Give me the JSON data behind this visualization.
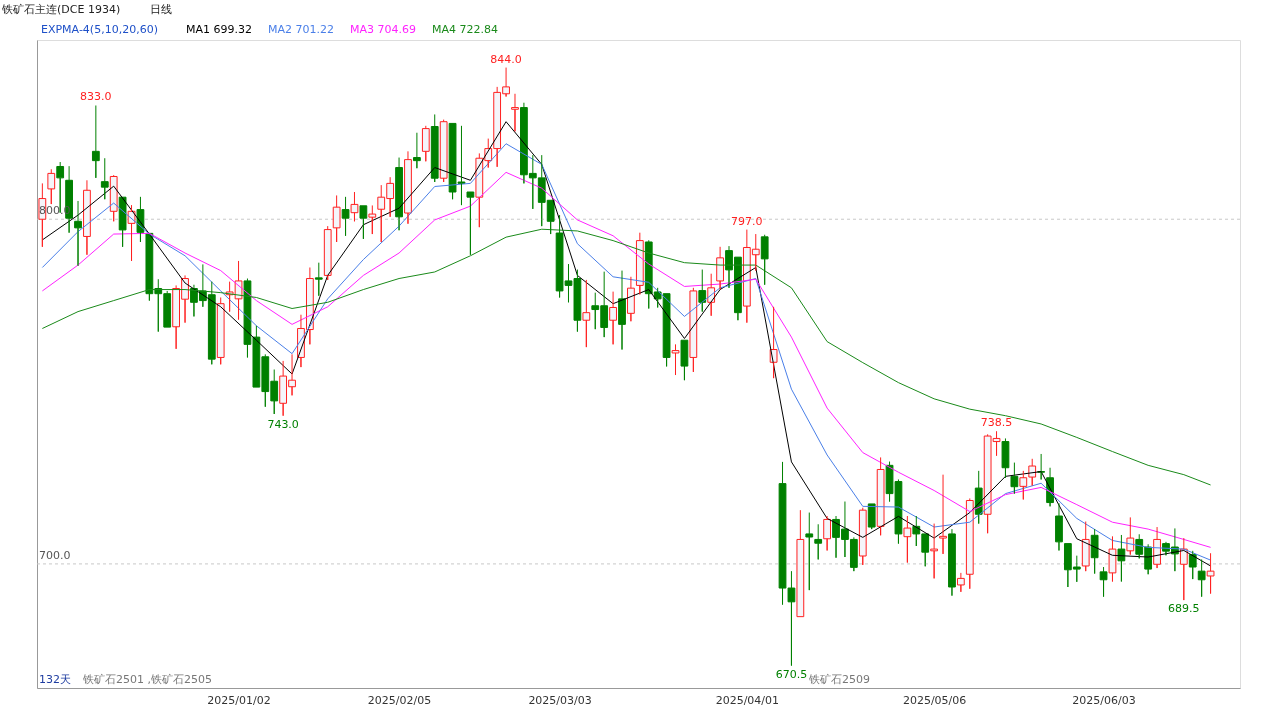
{
  "chart_data": {
    "type": "candlestick",
    "title": "铁矿石主连(DCE 1934)",
    "legend_title": "EXPMA-4(5,10,20,60)",
    "legend": "top left",
    "grid": "y",
    "categories": [
      null,
      null,
      null,
      null,
      null,
      null,
      null,
      null,
      null,
      null,
      null,
      null,
      null,
      null,
      null,
      null,
      null,
      null,
      null,
      null,
      null,
      null,
      "2025/01/02",
      null,
      null,
      null,
      null,
      null,
      null,
      null,
      null,
      null,
      null,
      null,
      null,
      null,
      null,
      null,
      null,
      null,
      "2025/02/05",
      null,
      null,
      null,
      null,
      null,
      null,
      null,
      null,
      null,
      null,
      null,
      null,
      null,
      null,
      null,
      null,
      null,
      "2025/03/03",
      null,
      null,
      null,
      null,
      null,
      null,
      null,
      null,
      null,
      null,
      null,
      null,
      null,
      null,
      null,
      null,
      null,
      null,
      null,
      null,
      "2025/04/01",
      null,
      null,
      null,
      null,
      null,
      null,
      null,
      null,
      null,
      null,
      null,
      null,
      null,
      null,
      null,
      null,
      null,
      null,
      null,
      null,
      "2025/05/06",
      null,
      null,
      null,
      null,
      null,
      null,
      null,
      null,
      null,
      null,
      null,
      null,
      null,
      null,
      null,
      null,
      null,
      null,
      "2025/06/03",
      null,
      null,
      null,
      null,
      null,
      null,
      null,
      null,
      null,
      null,
      null,
      null
    ],
    "ohlc": [
      [
        800.0,
        810.4,
        792.0,
        806.0
      ],
      [
        808.8,
        814.5,
        804.4,
        813.3
      ],
      [
        815.3,
        816.6,
        801.9,
        812.0
      ],
      [
        811.3,
        815.4,
        796.1,
        800.3
      ],
      [
        799.4,
        805.3,
        786.5,
        797.5
      ],
      [
        795.0,
        811.3,
        789.7,
        808.4
      ],
      [
        819.7,
        833.0,
        812.0,
        817.0
      ],
      [
        810.9,
        817.7,
        805.8,
        809.3
      ],
      [
        802.3,
        812.8,
        799.4,
        812.4
      ],
      [
        806.4,
        806.4,
        792.0,
        796.9
      ],
      [
        798.8,
        804.1,
        787.9,
        802.3
      ],
      [
        802.8,
        806.5,
        793.4,
        796.2
      ],
      [
        795.9,
        795.9,
        776.4,
        778.4
      ],
      [
        779.9,
        782.6,
        767.4,
        778.4
      ],
      [
        778.4,
        779.2,
        768.7,
        768.7
      ],
      [
        768.8,
        780.8,
        762.4,
        779.9
      ],
      [
        776.8,
        783.7,
        770.0,
        782.8
      ],
      [
        779.9,
        781.0,
        771.8,
        775.9
      ],
      [
        779.2,
        786.9,
        774.6,
        776.4
      ],
      [
        778.1,
        781.9,
        757.9,
        759.4
      ],
      [
        759.9,
        777.3,
        757.9,
        775.5
      ],
      [
        778.1,
        781.9,
        773.2,
        778.9
      ],
      [
        776.9,
        787.9,
        770.9,
        782.1
      ],
      [
        782.1,
        782.8,
        759.9,
        763.7
      ],
      [
        765.8,
        769.1,
        751.3,
        751.3
      ],
      [
        760.1,
        760.8,
        745.6,
        750.0
      ],
      [
        753.0,
        756.4,
        743.5,
        747.3
      ],
      [
        746.6,
        758.9,
        743.0,
        754.5
      ],
      [
        751.4,
        760.8,
        748.9,
        753.3
      ],
      [
        759.9,
        772.3,
        757.1,
        768.3
      ],
      [
        768.0,
        786.0,
        763.7,
        782.8
      ],
      [
        783.0,
        787.4,
        777.8,
        782.6
      ],
      [
        783.7,
        798.0,
        782.4,
        797.0
      ],
      [
        797.5,
        806.9,
        793.4,
        803.5
      ],
      [
        802.8,
        806.5,
        795.2,
        800.3
      ],
      [
        801.9,
        807.9,
        799.4,
        804.3
      ],
      [
        803.9,
        803.9,
        794.3,
        800.3
      ],
      [
        800.6,
        804.0,
        795.7,
        801.5
      ],
      [
        802.9,
        809.9,
        793.4,
        806.4
      ],
      [
        806.0,
        812.2,
        800.7,
        810.4
      ],
      [
        815.0,
        817.9,
        796.8,
        800.7
      ],
      [
        801.8,
        819.7,
        798.7,
        817.3
      ],
      [
        817.9,
        825.1,
        814.8,
        817.0
      ],
      [
        819.7,
        827.1,
        816.8,
        826.3
      ],
      [
        826.9,
        830.4,
        810.8,
        811.9
      ],
      [
        811.9,
        828.9,
        810.8,
        828.3
      ],
      [
        827.8,
        827.8,
        805.8,
        807.9
      ],
      [
        810.8,
        827.1,
        804.1,
        810.4
      ],
      [
        807.9,
        807.9,
        789.7,
        806.4
      ],
      [
        806.4,
        819.1,
        797.7,
        817.7
      ],
      [
        817.0,
        823.4,
        815.0,
        820.5
      ],
      [
        820.5,
        838.4,
        815.2,
        836.8
      ],
      [
        836.4,
        844.0,
        835.6,
        838.4
      ],
      [
        831.9,
        836.4,
        825.5,
        832.4
      ],
      [
        832.4,
        833.8,
        810.4,
        812.9
      ],
      [
        813.3,
        818.6,
        803.0,
        812.0
      ],
      [
        812.0,
        818.6,
        798.0,
        804.9
      ],
      [
        805.5,
        805.5,
        795.7,
        799.4
      ],
      [
        796.0,
        801.2,
        777.3,
        779.2
      ],
      [
        782.1,
        787.0,
        775.9,
        780.8
      ],
      [
        782.8,
        785.4,
        767.4,
        770.7
      ],
      [
        770.7,
        782.4,
        762.9,
        772.9
      ],
      [
        774.9,
        778.7,
        768.1,
        773.8
      ],
      [
        774.9,
        784.8,
        765.8,
        768.6
      ],
      [
        770.7,
        779.0,
        763.7,
        774.4
      ],
      [
        776.9,
        785.1,
        762.2,
        769.5
      ],
      [
        772.7,
        783.3,
        770.4,
        780.0
      ],
      [
        780.8,
        796.1,
        778.2,
        793.8
      ],
      [
        793.4,
        793.9,
        774.1,
        778.4
      ],
      [
        778.9,
        780.1,
        774.4,
        776.9
      ],
      [
        778.4,
        778.4,
        757.3,
        759.9
      ],
      [
        761.2,
        763.7,
        754.8,
        761.9
      ],
      [
        764.9,
        764.9,
        753.3,
        757.4
      ],
      [
        759.9,
        780.1,
        755.7,
        779.2
      ],
      [
        779.3,
        785.4,
        773.2,
        775.9
      ],
      [
        775.9,
        784.2,
        772.0,
        780.1
      ],
      [
        782.1,
        792.0,
        779.6,
        788.8
      ],
      [
        790.9,
        792.2,
        780.1,
        785.3
      ],
      [
        789.0,
        789.0,
        770.7,
        772.9
      ],
      [
        774.8,
        797.0,
        770.0,
        791.8
      ],
      [
        789.7,
        795.7,
        785.1,
        791.3
      ],
      [
        794.9,
        795.5,
        781.0,
        788.5
      ],
      [
        758.5,
        774.6,
        753.9,
        762.2
      ],
      [
        723.3,
        729.6,
        688.2,
        693.0
      ],
      [
        693.0,
        697.9,
        670.5,
        689.0
      ],
      [
        684.7,
        715.6,
        684.7,
        707.1
      ],
      [
        708.7,
        714.9,
        692.4,
        707.8
      ],
      [
        707.1,
        711.5,
        701.3,
        706.0
      ],
      [
        707.3,
        713.9,
        703.9,
        712.9
      ],
      [
        712.9,
        713.9,
        701.8,
        707.7
      ],
      [
        710.1,
        718.1,
        702.0,
        707.1
      ],
      [
        707.1,
        707.7,
        697.9,
        699.0
      ],
      [
        702.3,
        716.3,
        699.7,
        715.6
      ],
      [
        717.4,
        717.4,
        710.1,
        710.7
      ],
      [
        710.9,
        730.9,
        708.3,
        727.4
      ],
      [
        728.6,
        729.7,
        718.1,
        720.4
      ],
      [
        723.9,
        724.5,
        705.9,
        708.7
      ],
      [
        707.9,
        713.9,
        700.4,
        710.4
      ],
      [
        710.9,
        713.9,
        705.2,
        708.7
      ],
      [
        708.7,
        708.7,
        699.3,
        703.4
      ],
      [
        703.8,
        711.7,
        695.8,
        704.3
      ],
      [
        707.5,
        725.9,
        702.9,
        708.0
      ],
      [
        708.7,
        710.1,
        690.8,
        693.3
      ],
      [
        693.9,
        697.4,
        691.9,
        695.8
      ],
      [
        697.0,
        719.0,
        692.8,
        718.4
      ],
      [
        722.0,
        727.0,
        711.7,
        714.4
      ],
      [
        714.4,
        737.6,
        708.9,
        737.1
      ],
      [
        735.5,
        738.5,
        731.4,
        736.4
      ],
      [
        735.5,
        736.4,
        725.0,
        727.9
      ],
      [
        725.4,
        729.4,
        720.4,
        722.4
      ],
      [
        722.5,
        727.0,
        718.7,
        725.0
      ],
      [
        725.2,
        730.5,
        722.7,
        728.4
      ],
      [
        726.8,
        731.9,
        724.5,
        726.6
      ],
      [
        725.0,
        727.9,
        716.7,
        717.8
      ],
      [
        713.9,
        717.6,
        703.9,
        706.4
      ],
      [
        705.9,
        705.9,
        693.3,
        698.3
      ],
      [
        699.1,
        702.4,
        694.8,
        698.5
      ],
      [
        699.4,
        712.3,
        697.9,
        707.1
      ],
      [
        708.3,
        710.1,
        697.2,
        701.8
      ],
      [
        697.7,
        699.1,
        690.5,
        695.4
      ],
      [
        697.4,
        708.0,
        694.9,
        704.3
      ],
      [
        704.3,
        708.4,
        694.9,
        700.9
      ],
      [
        703.8,
        713.5,
        702.7,
        707.5
      ],
      [
        707.1,
        708.6,
        701.6,
        702.8
      ],
      [
        704.9,
        705.7,
        697.0,
        698.5
      ],
      [
        699.9,
        710.7,
        698.8,
        707.1
      ],
      [
        705.9,
        706.4,
        702.5,
        703.7
      ],
      [
        704.9,
        710.3,
        697.9,
        702.9
      ],
      [
        699.9,
        707.5,
        689.5,
        704.3
      ],
      [
        702.7,
        703.8,
        695.6,
        699.1
      ],
      [
        697.9,
        701.3,
        690.5,
        695.4
      ],
      [
        696.5,
        703.1,
        691.4,
        697.9
      ]
    ],
    "series": [
      {
        "name": "MA1 699.32",
        "type": "line",
        "color": "#000000",
        "values": [
          794.0,
          null,
          null,
          null,
          801.2,
          null,
          null,
          null,
          809.6,
          null,
          null,
          null,
          795.7,
          null,
          null,
          null,
          781.5,
          null,
          null,
          null,
          774.6,
          null,
          null,
          null,
          764.9,
          null,
          null,
          null,
          755.1,
          null,
          null,
          null,
          783.7,
          null,
          null,
          null,
          798.4,
          null,
          null,
          null,
          803.2,
          null,
          null,
          null,
          815.0,
          null,
          null,
          null,
          811.3,
          null,
          null,
          null,
          828.3,
          null,
          null,
          null,
          815.9,
          null,
          null,
          null,
          783.7,
          null,
          null,
          null,
          775.5,
          null,
          null,
          null,
          779.6,
          null,
          null,
          null,
          765.4,
          null,
          null,
          null,
          779.6,
          null,
          null,
          null,
          786.0,
          null,
          null,
          null,
          729.6,
          null,
          null,
          null,
          713.2,
          null,
          null,
          null,
          707.7,
          null,
          null,
          null,
          713.8,
          null,
          null,
          null,
          707.5,
          null,
          null,
          null,
          714.9,
          null,
          null,
          null,
          725.4,
          null,
          null,
          null,
          726.8,
          null,
          null,
          null,
          707.3,
          null,
          null,
          null,
          702.5,
          null,
          null,
          null,
          702.0,
          null,
          null,
          null,
          703.9,
          null,
          null,
          699.4
        ]
      },
      {
        "name": "MA2 701.22",
        "type": "line",
        "color": "#4a7fe8",
        "values": [
          786.0,
          null,
          null,
          null,
          796.4,
          null,
          null,
          null,
          804.7,
          null,
          null,
          null,
          795.7,
          null,
          null,
          null,
          789.4,
          null,
          null,
          null,
          779.2,
          null,
          null,
          null,
          769.1,
          null,
          null,
          null,
          761.0,
          null,
          null,
          null,
          776.9,
          null,
          null,
          null,
          788.3,
          null,
          null,
          null,
          798.0,
          null,
          null,
          null,
          809.5,
          null,
          null,
          null,
          810.4,
          null,
          null,
          null,
          821.9,
          null,
          null,
          null,
          815.9,
          null,
          null,
          null,
          792.9,
          null,
          null,
          null,
          783.3,
          null,
          null,
          null,
          781.7,
          null,
          null,
          null,
          771.8,
          null,
          null,
          null,
          780.1,
          null,
          null,
          null,
          782.8,
          null,
          null,
          null,
          750.7,
          null,
          null,
          null,
          731.6,
          null,
          null,
          null,
          716.7,
          null,
          null,
          null,
          716.5,
          null,
          null,
          null,
          710.7,
          null,
          null,
          null,
          712.1,
          null,
          null,
          null,
          720.4,
          null,
          null,
          null,
          723.4,
          null,
          null,
          null,
          713.2,
          null,
          null,
          null,
          706.8,
          null,
          null,
          null,
          704.8,
          null,
          null,
          null,
          704.3,
          null,
          null,
          701.1
        ]
      },
      {
        "name": "MA3 704.69",
        "type": "line",
        "color": "#ff22ff",
        "values": [
          779.2,
          null,
          null,
          null,
          786.7,
          null,
          null,
          null,
          795.7,
          null,
          null,
          null,
          795.9,
          null,
          null,
          null,
          790.2,
          null,
          null,
          null,
          785.1,
          null,
          null,
          null,
          776.4,
          null,
          null,
          null,
          769.5,
          null,
          null,
          null,
          774.6,
          null,
          null,
          null,
          783.7,
          null,
          null,
          null,
          790.2,
          null,
          null,
          null,
          799.8,
          null,
          null,
          null,
          803.8,
          null,
          null,
          null,
          813.6,
          null,
          null,
          null,
          809.0,
          null,
          null,
          null,
          799.8,
          null,
          null,
          null,
          795.2,
          null,
          null,
          null,
          787.0,
          null,
          null,
          null,
          780.5,
          null,
          null,
          null,
          781.2,
          null,
          null,
          null,
          782.6,
          null,
          null,
          null,
          765.8,
          null,
          null,
          null,
          745.2,
          null,
          null,
          null,
          732.3,
          null,
          null,
          null,
          726.6,
          null,
          null,
          null,
          721.3,
          null,
          null,
          null,
          715.2,
          null,
          null,
          null,
          720.1,
          null,
          null,
          null,
          722.2,
          null,
          null,
          null,
          717.2,
          null,
          null,
          null,
          712.1,
          null,
          null,
          null,
          710.1,
          null,
          null,
          null,
          707.1,
          null,
          null,
          704.8
        ]
      },
      {
        "name": "MA4 722.84",
        "type": "line",
        "color": "#1a8a1a",
        "values": [
          768.3,
          null,
          null,
          null,
          773.2,
          null,
          null,
          null,
          776.4,
          null,
          null,
          null,
          779.6,
          null,
          null,
          null,
          779.6,
          null,
          null,
          null,
          778.7,
          null,
          null,
          null,
          777.3,
          null,
          null,
          null,
          774.1,
          null,
          null,
          null,
          775.9,
          null,
          null,
          null,
          779.6,
          null,
          null,
          null,
          782.8,
          null,
          null,
          null,
          784.7,
          null,
          null,
          null,
          789.4,
          null,
          null,
          null,
          794.8,
          null,
          null,
          null,
          797.1,
          null,
          null,
          null,
          796.6,
          null,
          null,
          null,
          793.8,
          null,
          null,
          null,
          790.2,
          null,
          null,
          null,
          787.4,
          null,
          null,
          null,
          786.7,
          null,
          null,
          null,
          786.7,
          null,
          null,
          null,
          780.1,
          null,
          null,
          null,
          764.5,
          null,
          null,
          null,
          758.4,
          null,
          null,
          null,
          752.6,
          null,
          null,
          null,
          747.9,
          null,
          null,
          null,
          744.9,
          null,
          null,
          null,
          743.0,
          null,
          null,
          null,
          740.6,
          null,
          null,
          null,
          736.7,
          null,
          null,
          null,
          732.6,
          null,
          null,
          null,
          728.6,
          null,
          null,
          null,
          725.9,
          null,
          null,
          722.9
        ]
      }
    ],
    "ylim": [
      664,
      852
    ],
    "yticks": [
      {
        "value": 700,
        "label": "700.0"
      },
      {
        "value": 800,
        "label": "800.0"
      }
    ],
    "annotations": [
      "日线",
      "132天",
      "铁矿石2501 ,铁矿石2505",
      "铁矿石2509",
      {
        "text": "833.0",
        "y": 833.0
      },
      {
        "text": "743.0",
        "y": 743.0
      },
      {
        "text": "844.0",
        "y": 844.0
      },
      {
        "text": "797.0",
        "y": 797.0
      },
      {
        "text": "670.5",
        "y": 670.5
      },
      {
        "text": "738.5",
        "y": 738.5
      },
      {
        "text": "689.5",
        "y": 689.5
      }
    ]
  }
}
